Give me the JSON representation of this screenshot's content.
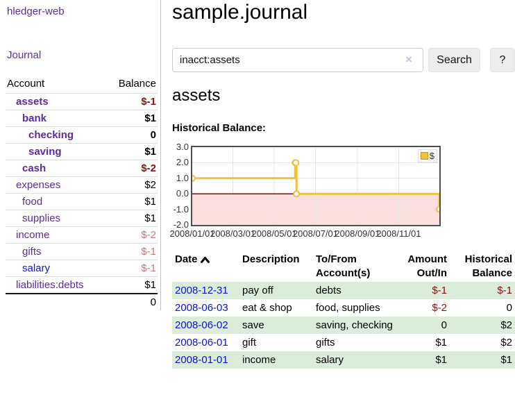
{
  "sidebar": {
    "brand": "hledger-web",
    "nav": {
      "journal": "Journal"
    },
    "accounts_header": {
      "account": "Account",
      "balance": "Balance"
    },
    "accounts": [
      {
        "name": "assets",
        "depth": 1,
        "balance": "$-1",
        "bold": true,
        "neg": "strong"
      },
      {
        "name": "bank",
        "depth": 2,
        "balance": "$1",
        "bold": true,
        "neg": "none"
      },
      {
        "name": "checking",
        "depth": 3,
        "balance": "0",
        "bold": true,
        "neg": "none"
      },
      {
        "name": "saving",
        "depth": 3,
        "balance": "$1",
        "bold": true,
        "neg": "none"
      },
      {
        "name": "cash",
        "depth": 2,
        "balance": "$-2",
        "bold": true,
        "neg": "strong"
      },
      {
        "name": "expenses",
        "depth": 1,
        "balance": "$2",
        "bold": false,
        "neg": "none"
      },
      {
        "name": "food",
        "depth": 2,
        "balance": "$1",
        "bold": false,
        "neg": "none"
      },
      {
        "name": "supplies",
        "depth": 2,
        "balance": "$1",
        "bold": false,
        "neg": "none"
      },
      {
        "name": "income",
        "depth": 1,
        "balance": "$-2",
        "bold": false,
        "neg": "soft"
      },
      {
        "name": "gifts",
        "depth": 2,
        "balance": "$-1",
        "bold": false,
        "neg": "soft"
      },
      {
        "name": "salary",
        "depth": 2,
        "balance": "$-1",
        "bold": false,
        "neg": "soft",
        "link_color": "blue"
      },
      {
        "name": "liabilities:debts",
        "depth": 1,
        "balance": "$1",
        "bold": false,
        "neg": "none"
      }
    ],
    "total": "0"
  },
  "main": {
    "title": "sample.journal",
    "search": {
      "value": "inacct:assets",
      "clear_icon": "×",
      "button": "Search",
      "help_button": "?"
    },
    "account_heading": "assets",
    "chart_label": "Historical Balance:"
  },
  "chart_data": {
    "type": "line",
    "title": "Historical Balance",
    "step": true,
    "series": [
      {
        "name": "$",
        "color": "#edc240",
        "points": [
          [
            "2008-01-01",
            1
          ],
          [
            "2008-06-01",
            2
          ],
          [
            "2008-06-02",
            2
          ],
          [
            "2008-06-03",
            0
          ],
          [
            "2008-12-31",
            -1
          ]
        ]
      }
    ],
    "x_range": [
      "2008-01-01",
      "2008-12-31"
    ],
    "x_ticks": [
      "2008/01/01",
      "2008/03/01",
      "2008/05/01",
      "2008/07/01",
      "2008/09/01",
      "2008/11/01"
    ],
    "y_ticks": [
      "3.0",
      "2.0",
      "1.0",
      "0.0",
      "-1.0",
      "-2.0"
    ],
    "ylim": [
      -2,
      3
    ],
    "grid": true,
    "legend_position": "top-right",
    "grid_color": "#e4e4e4",
    "negative_region_color": "#fbdede",
    "zero_line_color": "#8b0000"
  },
  "register": {
    "headers": {
      "date": "Date",
      "description": "Description",
      "accounts": "To/From Account(s)",
      "amount": "Amount Out/In",
      "balance": "Historical Balance"
    },
    "sort_icon": "chevron-up",
    "rows": [
      {
        "date": "2008-12-31",
        "description": "pay off",
        "accounts": "debts",
        "amount": "$-1",
        "balance": "$-1",
        "amount_neg": true,
        "balance_neg": true
      },
      {
        "date": "2008-06-03",
        "description": "eat & shop",
        "accounts": "food, supplies",
        "amount": "$-2",
        "balance": "0",
        "amount_neg": true,
        "balance_neg": false
      },
      {
        "date": "2008-06-02",
        "description": "save",
        "accounts": "saving, checking",
        "amount": "0",
        "balance": "$2",
        "amount_neg": false,
        "balance_neg": false
      },
      {
        "date": "2008-06-01",
        "description": "gift",
        "accounts": "gifts",
        "amount": "$1",
        "balance": "$2",
        "amount_neg": false,
        "balance_neg": false
      },
      {
        "date": "2008-01-01",
        "description": "income",
        "accounts": "salary",
        "amount": "$1",
        "balance": "$1",
        "amount_neg": false,
        "balance_neg": false
      }
    ]
  }
}
